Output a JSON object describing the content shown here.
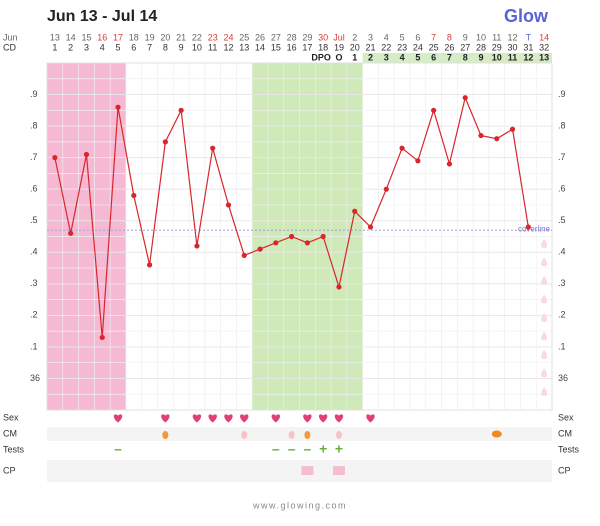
{
  "chart_data": {
    "type": "line",
    "title": "Jun 13 - Jul 14",
    "brand": "Glow",
    "date_row_label": "Jun",
    "categories": [
      "13",
      "14",
      "15",
      "16",
      "17",
      "18",
      "19",
      "20",
      "21",
      "22",
      "23",
      "24",
      "25",
      "26",
      "27",
      "28",
      "29",
      "30",
      "Jul",
      "2",
      "3",
      "4",
      "5",
      "6",
      "7",
      "8",
      "9",
      "10",
      "11",
      "12",
      "T",
      "14"
    ],
    "cd_label": "CD",
    "cycle_days": [
      1,
      2,
      3,
      4,
      5,
      6,
      7,
      8,
      9,
      10,
      11,
      12,
      13,
      14,
      15,
      16,
      17,
      18,
      19,
      20,
      21,
      22,
      23,
      24,
      25,
      26,
      27,
      28,
      29,
      30,
      31,
      32
    ],
    "dpo_label": "DPO",
    "dpo": [
      null,
      null,
      null,
      null,
      null,
      null,
      null,
      null,
      null,
      null,
      null,
      null,
      null,
      null,
      null,
      null,
      null,
      null,
      "O",
      1,
      2,
      3,
      4,
      5,
      6,
      7,
      8,
      9,
      10,
      11,
      12,
      13
    ],
    "series": [
      {
        "name": "Temperature",
        "color": "#d8262c",
        "values": [
          36.7,
          36.46,
          36.71,
          36.13,
          36.86,
          36.58,
          36.36,
          36.75,
          36.85,
          36.42,
          36.73,
          36.55,
          36.39,
          36.41,
          36.43,
          36.45,
          36.43,
          36.45,
          36.29,
          36.53,
          36.48,
          36.6,
          36.73,
          36.69,
          36.85,
          36.68,
          36.89,
          36.77,
          36.76,
          36.79,
          36.48,
          null
        ]
      }
    ],
    "ylim": [
      35.9,
      37.0
    ],
    "yticks": [
      {
        "value": 36.9,
        "label": ".9"
      },
      {
        "value": 36.8,
        "label": ".8"
      },
      {
        "value": 36.7,
        "label": ".7"
      },
      {
        "value": 36.6,
        "label": ".6"
      },
      {
        "value": 36.5,
        "label": ".5"
      },
      {
        "value": 36.4,
        "label": ".4"
      },
      {
        "value": 36.3,
        "label": ".3"
      },
      {
        "value": 36.2,
        "label": ".2"
      },
      {
        "value": 36.1,
        "label": ".1"
      },
      36
    ],
    "coverline": {
      "value": 36.47,
      "label": "coverline"
    },
    "shaded": [
      {
        "from": 1,
        "to": 5,
        "color": "#f6b9d3"
      },
      {
        "from": 14,
        "to": 20,
        "color": "#cfe9b8"
      }
    ],
    "rows": [
      {
        "label": "Sex"
      },
      {
        "label": "CM"
      },
      {
        "label": "Tests",
        "marks": [
          null,
          null,
          null,
          null,
          "–",
          null,
          null,
          null,
          null,
          null,
          null,
          null,
          null,
          null,
          "–",
          "–",
          "–",
          "+",
          "+",
          null,
          null,
          null,
          null,
          null,
          null,
          null,
          null,
          null,
          null,
          null,
          null,
          null
        ]
      },
      {
        "label": "CP"
      }
    ],
    "footer": "www.glowing.com",
    "grid": true
  }
}
